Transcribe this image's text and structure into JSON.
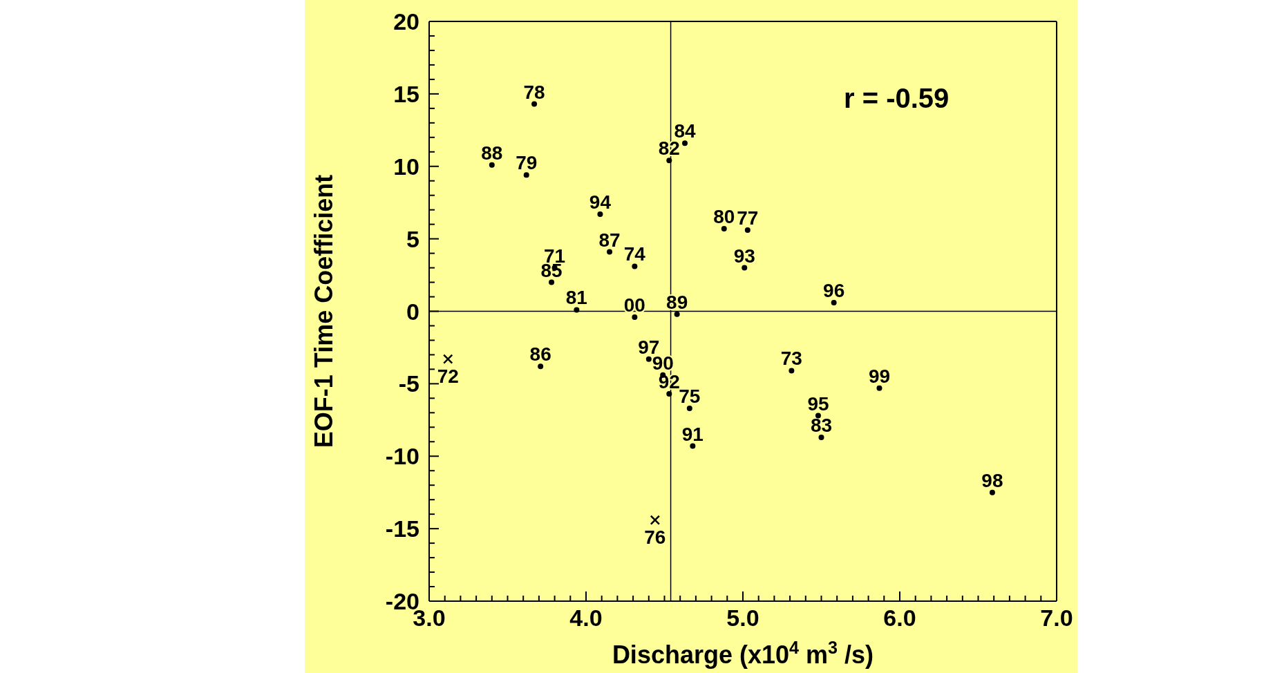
{
  "chart_data": {
    "type": "scatter",
    "xlabel": "Discharge (x10$^{4}$ m$^{3}$/s)",
    "ylabel": "EOF-1 Time Coefficient",
    "xlim": [
      3,
      7
    ],
    "ylim": [
      -20,
      20
    ],
    "xticks": [
      {
        "value": 3,
        "label": "3.0"
      },
      {
        "value": 3.1,
        "label": null
      },
      {
        "value": 3.2,
        "label": null
      },
      {
        "value": 3.3,
        "label": null
      },
      {
        "value": 3.4,
        "label": null
      },
      {
        "value": 3.5,
        "label": null
      },
      {
        "value": 3.6,
        "label": null
      },
      {
        "value": 3.7,
        "label": null
      },
      {
        "value": 3.8,
        "label": null
      },
      {
        "value": 3.9,
        "label": null
      },
      {
        "value": 4,
        "label": "4.0"
      },
      {
        "value": 4.1,
        "label": null
      },
      {
        "value": 4.2,
        "label": null
      },
      {
        "value": 4.3,
        "label": null
      },
      {
        "value": 4.4,
        "label": null
      },
      {
        "value": 4.5,
        "label": null
      },
      {
        "value": 4.6,
        "label": null
      },
      {
        "value": 4.7,
        "label": null
      },
      {
        "value": 4.8,
        "label": null
      },
      {
        "value": 4.9,
        "label": null
      },
      {
        "value": 5,
        "label": "5.0"
      },
      {
        "value": 5.1,
        "label": null
      },
      {
        "value": 5.2,
        "label": null
      },
      {
        "value": 5.3,
        "label": null
      },
      {
        "value": 5.4,
        "label": null
      },
      {
        "value": 5.5,
        "label": null
      },
      {
        "value": 5.6,
        "label": null
      },
      {
        "value": 5.7,
        "label": null
      },
      {
        "value": 5.8,
        "label": null
      },
      {
        "value": 5.9,
        "label": null
      },
      {
        "value": 6,
        "label": "6.0"
      },
      {
        "value": 6.1,
        "label": null
      },
      {
        "value": 6.2,
        "label": null
      },
      {
        "value": 6.3,
        "label": null
      },
      {
        "value": 6.4,
        "label": null
      },
      {
        "value": 6.5,
        "label": null
      },
      {
        "value": 6.6,
        "label": null
      },
      {
        "value": 6.7,
        "label": null
      },
      {
        "value": 6.8,
        "label": null
      },
      {
        "value": 6.9,
        "label": null
      },
      {
        "value": 7,
        "label": "7.0"
      }
    ],
    "yticks": [
      -20,
      {
        "value": -19,
        "label": null
      },
      {
        "value": -18,
        "label": null
      },
      {
        "value": -17,
        "label": null
      },
      {
        "value": -16,
        "label": null
      },
      -15,
      {
        "value": -14,
        "label": null
      },
      {
        "value": -13,
        "label": null
      },
      {
        "value": -12,
        "label": null
      },
      {
        "value": -11,
        "label": null
      },
      -10,
      {
        "value": -9,
        "label": null
      },
      {
        "value": -8,
        "label": null
      },
      {
        "value": -7,
        "label": null
      },
      {
        "value": -6,
        "label": null
      },
      -5,
      {
        "value": -4,
        "label": null
      },
      {
        "value": -3,
        "label": null
      },
      {
        "value": -2,
        "label": null
      },
      {
        "value": -1,
        "label": null
      },
      0,
      {
        "value": 1,
        "label": null
      },
      {
        "value": 2,
        "label": null
      },
      {
        "value": 3,
        "label": null
      },
      {
        "value": 4,
        "label": null
      },
      5,
      {
        "value": 6,
        "label": null
      },
      {
        "value": 7,
        "label": null
      },
      {
        "value": 8,
        "label": null
      },
      {
        "value": 9,
        "label": null
      },
      10,
      {
        "value": 11,
        "label": null
      },
      {
        "value": 12,
        "label": null
      },
      {
        "value": 13,
        "label": null
      },
      {
        "value": 14,
        "label": null
      },
      15,
      {
        "value": 16,
        "label": null
      },
      {
        "value": 17,
        "label": null
      },
      {
        "value": 18,
        "label": null
      },
      {
        "value": 19,
        "label": null
      },
      20
    ],
    "series": [
      {
        "color": "#000000",
        "marker": "circle",
        "x": [
          3.67,
          3.4,
          3.62,
          4.09,
          3.78,
          3.8,
          4.15,
          4.31,
          3.94,
          4.31,
          4.58,
          4.53,
          4.63,
          4.88,
          5.03,
          5.01,
          5.58,
          3.71,
          4.4,
          4.49,
          4.53,
          4.66,
          4.68,
          5.31,
          5.87,
          5.48,
          5.5,
          6.59
        ],
        "values": [
          14.3,
          10.1,
          9.4,
          6.7,
          2.0,
          3.0,
          4.1,
          3.1,
          0.1,
          -0.4,
          -0.2,
          10.4,
          11.6,
          5.7,
          5.6,
          3.0,
          0.6,
          -3.8,
          -3.3,
          -4.4,
          -5.7,
          -6.7,
          -9.3,
          -4.1,
          -5.3,
          -7.2,
          -8.7,
          -12.5
        ]
      },
      {
        "color": "#000000",
        "marker": "cross",
        "x": [
          3.12,
          4.44
        ],
        "values": [
          -3.3,
          -14.4
        ]
      }
    ],
    "ref_lines": [
      {
        "axis": "y",
        "value": 0
      },
      {
        "axis": "x",
        "value": 4.54
      }
    ],
    "annotations": [
      "r = -0.59",
      {
        "text": "78",
        "x": 3.67,
        "y": 14.3
      },
      {
        "text": "88",
        "x": 3.4,
        "y": 10.1
      },
      {
        "text": "79",
        "x": 3.62,
        "y": 9.4
      },
      {
        "text": "94",
        "x": 4.09,
        "y": 6.7
      },
      {
        "text": "85",
        "x": 3.78,
        "y": 2.0
      },
      {
        "text": "71",
        "x": 3.8,
        "y": 3.0
      },
      {
        "text": "87",
        "x": 4.15,
        "y": 4.1
      },
      {
        "text": "74",
        "x": 4.31,
        "y": 3.1
      },
      {
        "text": "81",
        "x": 3.94,
        "y": 0.1
      },
      {
        "text": "00",
        "x": 4.31,
        "y": -0.4
      },
      {
        "text": "89",
        "x": 4.58,
        "y": -0.2
      },
      {
        "text": "82",
        "x": 4.53,
        "y": 10.4
      },
      {
        "text": "84",
        "x": 4.63,
        "y": 11.6
      },
      {
        "text": "80",
        "x": 4.88,
        "y": 5.7
      },
      {
        "text": "77",
        "x": 5.03,
        "y": 5.6
      },
      {
        "text": "93",
        "x": 5.01,
        "y": 3.0
      },
      {
        "text": "96",
        "x": 5.58,
        "y": 0.6
      },
      {
        "text": "86",
        "x": 3.71,
        "y": -3.8
      },
      {
        "text": "97",
        "x": 4.4,
        "y": -3.3
      },
      {
        "text": "90",
        "x": 4.49,
        "y": -4.4
      },
      {
        "text": "92",
        "x": 4.53,
        "y": -5.7
      },
      {
        "text": "75",
        "x": 4.66,
        "y": -6.7
      },
      {
        "text": "91",
        "x": 4.68,
        "y": -9.3
      },
      {
        "text": "73",
        "x": 5.31,
        "y": -4.1
      },
      {
        "text": "99",
        "x": 5.87,
        "y": -5.3
      },
      {
        "text": "95",
        "x": 5.48,
        "y": -7.2
      },
      {
        "text": "83",
        "x": 5.5,
        "y": -8.7
      },
      {
        "text": "98",
        "x": 6.59,
        "y": -12.5
      },
      {
        "text": "72",
        "x": 3.12,
        "y": -3.3
      },
      {
        "text": "76",
        "x": 4.44,
        "y": -14.4
      }
    ]
  }
}
